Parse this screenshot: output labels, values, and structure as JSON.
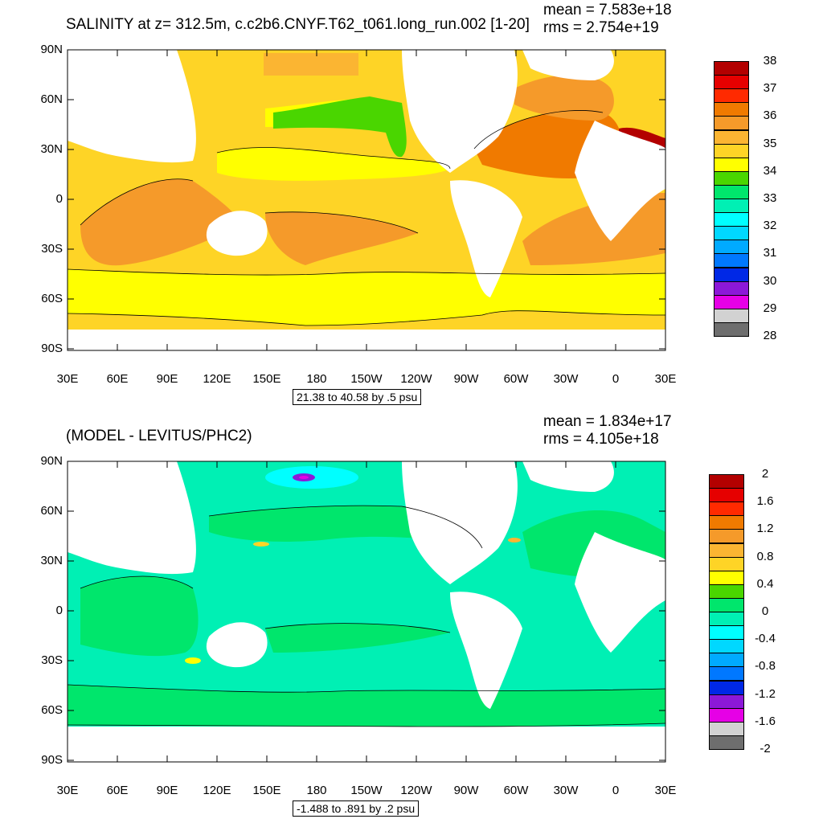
{
  "top_panel": {
    "title": "SALINITY at z= 312.5m, c.c2b6.CNYF.T62_t061.long_run.002 [1-20]",
    "mean_text": "mean = 7.583e+18",
    "rms_text": "rms = 2.754e+19",
    "info_text": "21.38 to 40.58 by .5 psu",
    "colorbar": {
      "labels": [
        "38",
        "37",
        "36",
        "35",
        "34",
        "33",
        "32",
        "31",
        "30",
        "29",
        "28"
      ],
      "colors": [
        "#b30000",
        "#e60000",
        "#ff2a00",
        "#f07a00",
        "#f59a2a",
        "#fbb532",
        "#fed426",
        "#ffff00",
        "#4ad600",
        "#00e66c",
        "#00f0b4",
        "#00ffff",
        "#00d8ff",
        "#00aaff",
        "#0078ff",
        "#0028e6",
        "#8c18d8",
        "#e600e6",
        "#d2d2d2",
        "#6e6e6e"
      ]
    }
  },
  "bottom_panel": {
    "title": "(MODEL - LEVITUS/PHC2)",
    "mean_text": "mean = 1.834e+17",
    "rms_text": "rms = 4.105e+18",
    "info_text": "-1.488 to .891 by .2 psu",
    "colorbar": {
      "labels": [
        "2",
        "1.6",
        "1.2",
        "0.8",
        "0.4",
        "0",
        "-0.4",
        "-0.8",
        "-1.2",
        "-1.6",
        "-2"
      ],
      "colors": [
        "#b30000",
        "#e60000",
        "#ff2a00",
        "#f07a00",
        "#f59a2a",
        "#fbb532",
        "#fed426",
        "#ffff00",
        "#4ad600",
        "#00e66c",
        "#00f0b4",
        "#00ffff",
        "#00d8ff",
        "#00aaff",
        "#0078ff",
        "#0028e6",
        "#8c18d8",
        "#e600e6",
        "#d2d2d2",
        "#6e6e6e"
      ]
    }
  },
  "latitude_labels": [
    "90N",
    "60N",
    "30N",
    "0",
    "30S",
    "60S",
    "90S"
  ],
  "longitude_labels": [
    "30E",
    "60E",
    "90E",
    "120E",
    "150E",
    "180",
    "150W",
    "120W",
    "90W",
    "60W",
    "30W",
    "0",
    "30E"
  ]
}
